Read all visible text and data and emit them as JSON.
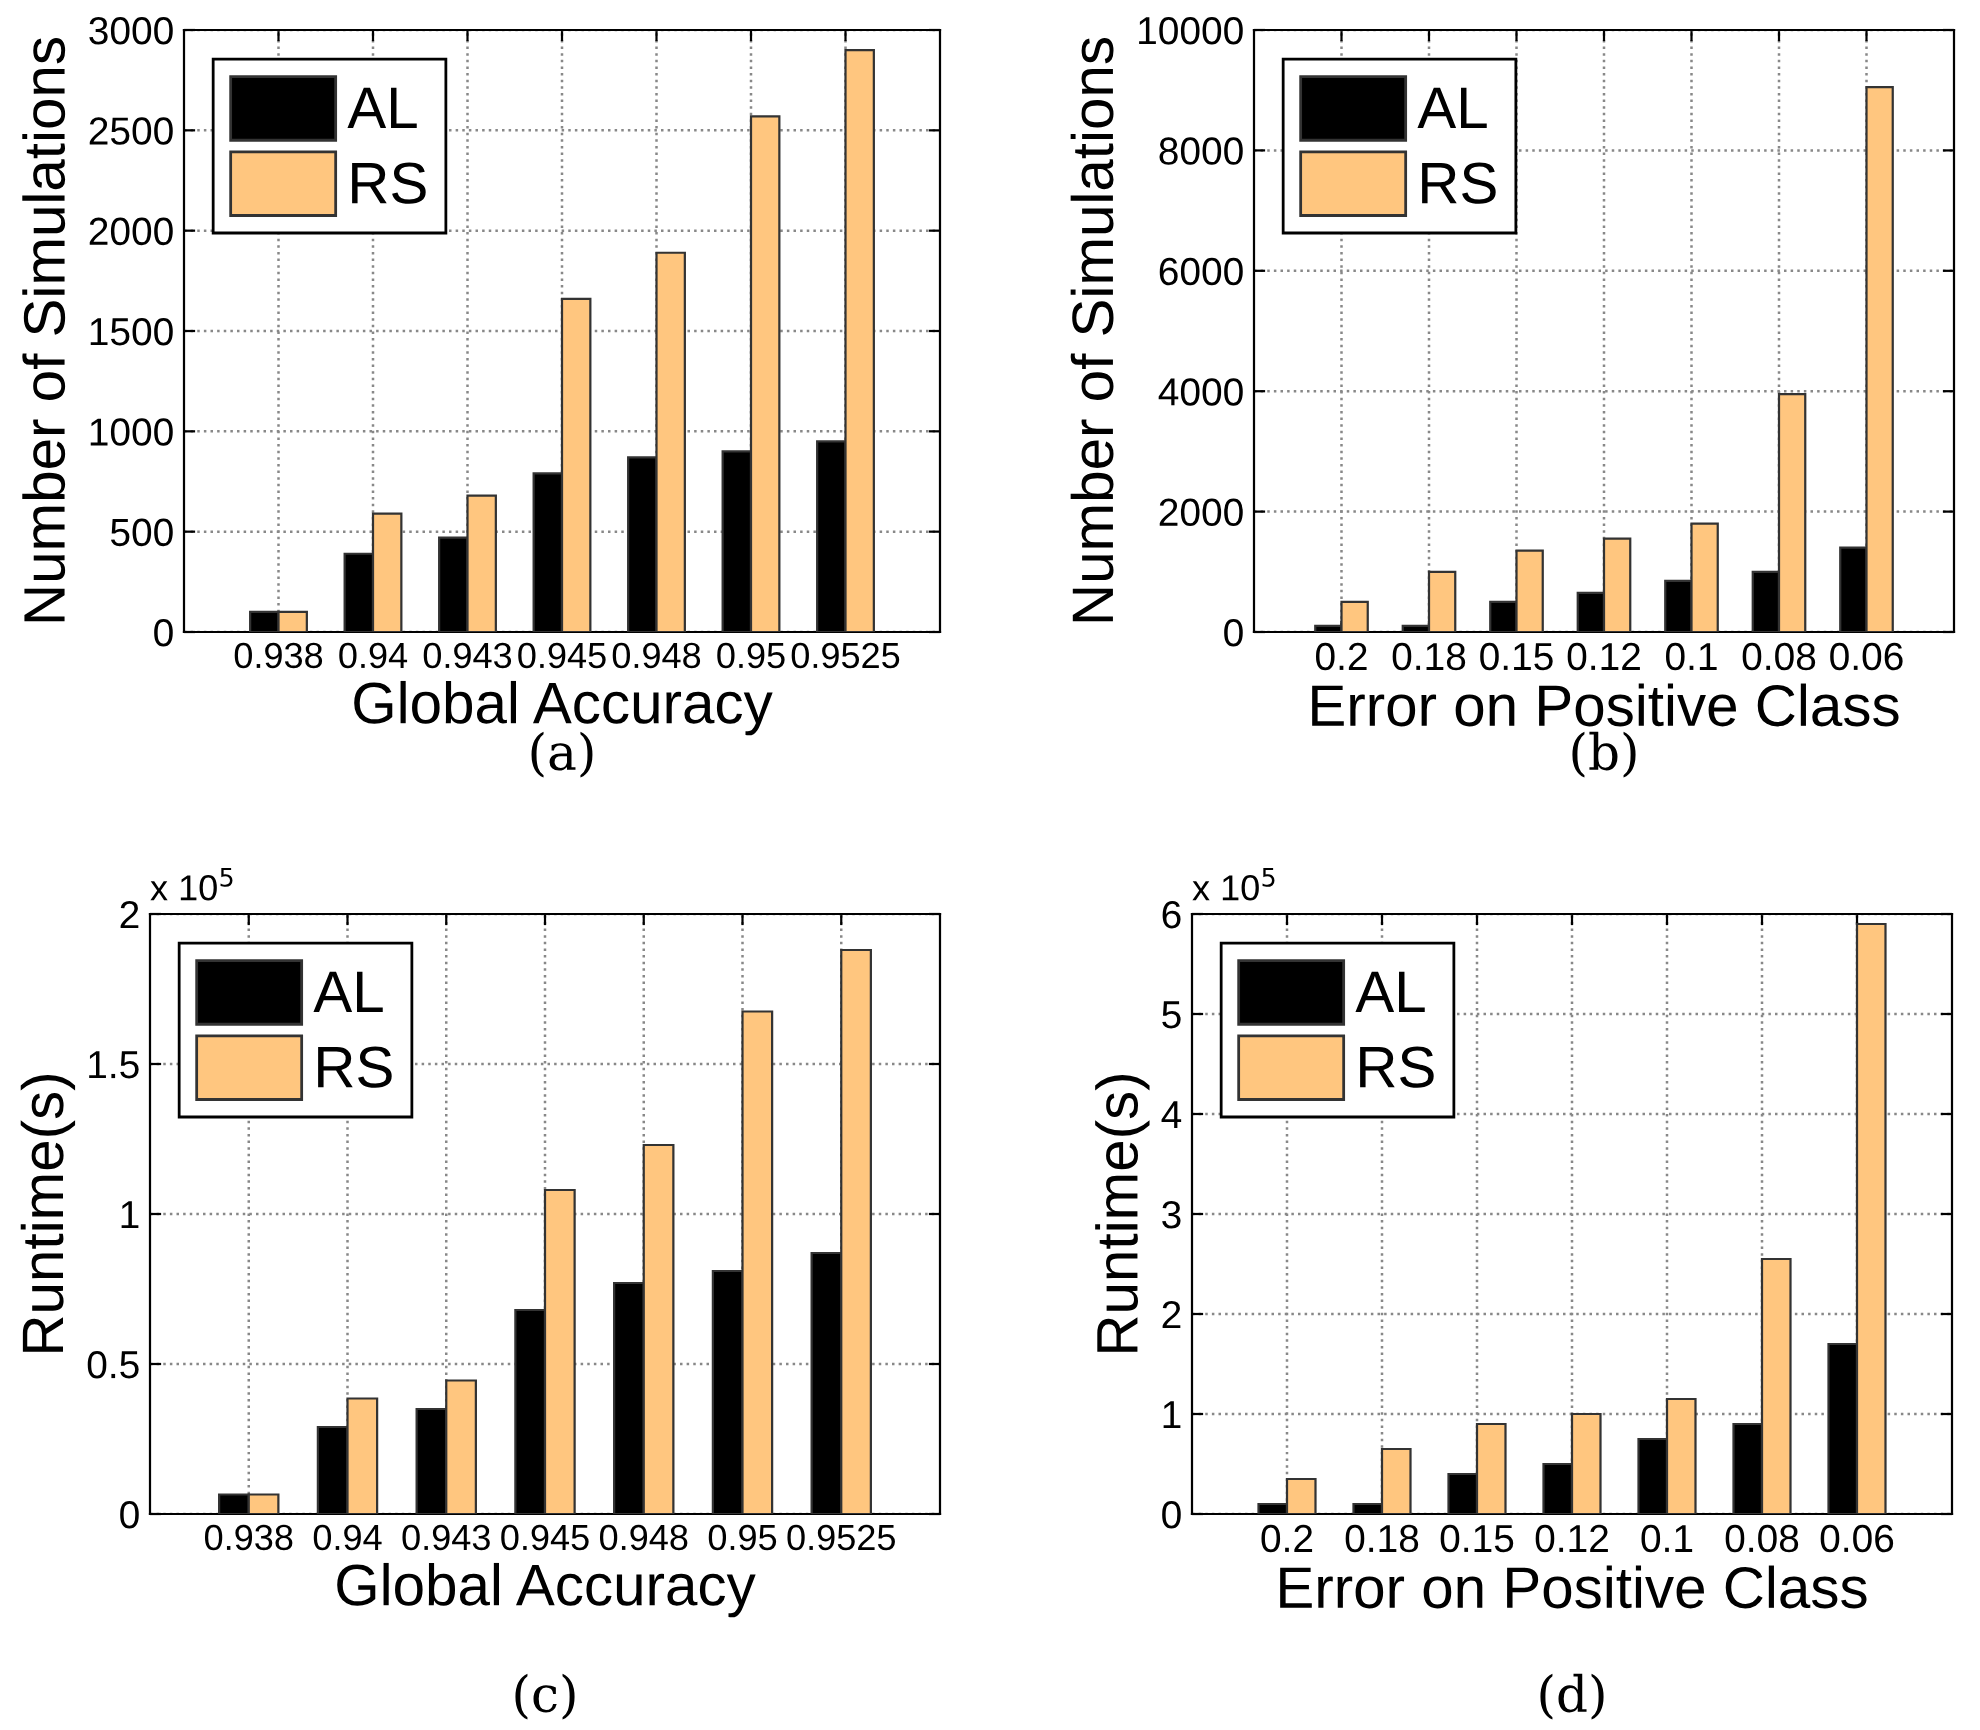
{
  "chart_data": [
    {
      "type": "bar",
      "xlabel": "Global Accuracy",
      "ylabel": "Number of Simulations",
      "categories": [
        "0.938",
        "0.94",
        "0.943",
        "0.945",
        "0.948",
        "0.95",
        "0.9525"
      ],
      "series": [
        {
          "name": "AL",
          "color": "#000000",
          "values": [
            100,
            390,
            470,
            790,
            870,
            900,
            950
          ]
        },
        {
          "name": "RS",
          "color": "#ffc67f",
          "values": [
            100,
            590,
            680,
            1660,
            1890,
            2570,
            2900
          ]
        }
      ],
      "ylim": [
        0,
        3000
      ],
      "yticks": [
        0,
        500,
        1000,
        1500,
        2000,
        2500,
        3000
      ],
      "grid": true,
      "legend": "top left",
      "annotations": [
        "(a)"
      ]
    },
    {
      "type": "bar",
      "xlabel": "Error on Positive Class",
      "ylabel": "Number of Simulations",
      "categories": [
        "0.2",
        "0.18",
        "0.15",
        "0.12",
        "0.1",
        "0.08",
        "0.06"
      ],
      "series": [
        {
          "name": "AL",
          "color": "#000000",
          "values": [
            100,
            100,
            500,
            650,
            850,
            1000,
            1400
          ]
        },
        {
          "name": "RS",
          "color": "#ffc67f",
          "values": [
            500,
            1000,
            1350,
            1550,
            1800,
            3950,
            9050
          ]
        }
      ],
      "ylim": [
        0,
        10000
      ],
      "yticks": [
        0,
        2000,
        4000,
        6000,
        8000,
        10000
      ],
      "grid": true,
      "legend": "top left",
      "annotations": [
        "(b)"
      ]
    },
    {
      "type": "bar",
      "xlabel": "Global Accuracy",
      "ylabel": "Runtime(s)",
      "categories": [
        "0.938",
        "0.94",
        "0.943",
        "0.945",
        "0.948",
        "0.95",
        "0.9525"
      ],
      "series": [
        {
          "name": "AL",
          "color": "#000000",
          "values": [
            0.065,
            0.29,
            0.35,
            0.68,
            0.77,
            0.81,
            0.87
          ]
        },
        {
          "name": "RS",
          "color": "#ffc67f",
          "values": [
            0.065,
            0.385,
            0.445,
            1.08,
            1.23,
            1.675,
            1.88
          ]
        }
      ],
      "ylim": [
        0,
        2
      ],
      "yticks": [
        0,
        0.5,
        1,
        1.5,
        2
      ],
      "grid": true,
      "legend": "top left",
      "annotations": [
        "x 10$^{5}$",
        "(c)"
      ]
    },
    {
      "type": "bar",
      "xlabel": "Error on Positive Class",
      "ylabel": "Runtime(s)",
      "categories": [
        "0.2",
        "0.18",
        "0.15",
        "0.12",
        "0.1",
        "0.08",
        "0.06"
      ],
      "series": [
        {
          "name": "AL",
          "color": "#000000",
          "values": [
            0.1,
            0.1,
            0.4,
            0.5,
            0.75,
            0.9,
            1.7
          ]
        },
        {
          "name": "RS",
          "color": "#ffc67f",
          "values": [
            0.35,
            0.65,
            0.9,
            1.0,
            1.15,
            2.55,
            5.9
          ]
        }
      ],
      "ylim": [
        0,
        6
      ],
      "yticks": [
        0,
        1,
        2,
        3,
        4,
        5,
        6
      ],
      "grid": true,
      "legend": "top left",
      "annotations": [
        "x 10$^{5}$",
        "(d)"
      ]
    }
  ]
}
